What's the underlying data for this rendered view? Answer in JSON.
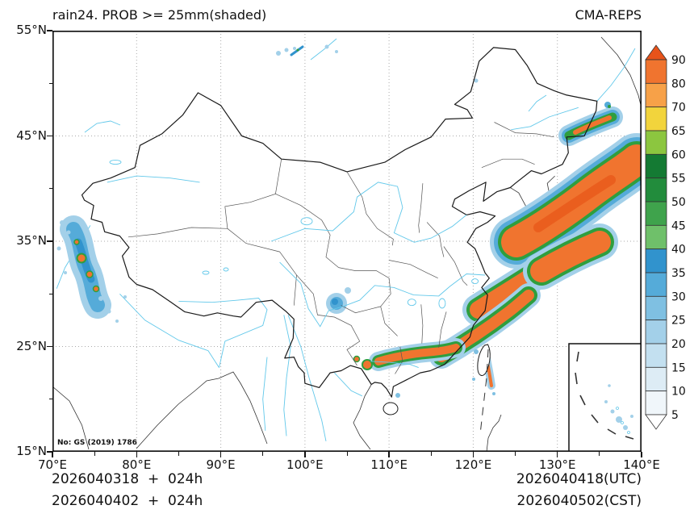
{
  "header": {
    "title": "rain24. PROB >= 25mm(shaded)",
    "source": "CMA-REPS"
  },
  "axes": {
    "lat_ticks": [
      "55°N",
      "45°N",
      "35°N",
      "25°N",
      "15°N"
    ],
    "lon_ticks": [
      "70°E",
      "80°E",
      "90°E",
      "100°E",
      "110°E",
      "120°E",
      "130°E",
      "140°E"
    ]
  },
  "colorbar": {
    "labels": [
      "90",
      "80",
      "70",
      "65",
      "60",
      "55",
      "50",
      "45",
      "40",
      "35",
      "30",
      "25",
      "20",
      "15",
      "10",
      "5"
    ],
    "segment_colors_top_to_bottom": [
      "#f0742f",
      "#f7a148",
      "#f2d43c",
      "#8cc63f",
      "#147a33",
      "#228c3c",
      "#3fa34c",
      "#6fc06a",
      "#3193cd",
      "#55abd9",
      "#7fc0e2",
      "#a3d0e9",
      "#c3e0f0",
      "#ddecf5",
      "#f0f6fa"
    ],
    "arrow_top_color": "#e8531a",
    "arrow_bottom_color": "#ffffff"
  },
  "footer": {
    "line1_left": "2026040318  +  024h",
    "line1_right": "2026040418(UTC)",
    "line2_left": "2026040402  +  024h",
    "line2_right": "2026040502(CST)"
  },
  "map": {
    "annotation": "No: GS (2019) 1786",
    "land_color": "#ffffff",
    "border_color": "#1a1a1a",
    "province_color": "#555555",
    "river_color": "#62c8ea",
    "grid_color": "#aaaaaa",
    "shade_orange": "#f0742f",
    "shade_dark_orange": "#ea5e1e",
    "shade_green": "#2f9e3e",
    "shade_blue": "#55abd9",
    "shade_light_blue": "#a3d0e9",
    "shaded_regions": [
      {
        "area": "Sea of Japan, Korea to northern Japan",
        "probability": ">=90% core band with 25-60% fringe"
      },
      {
        "area": "Korea Strait to southern Japan",
        "probability": "80-90% band"
      },
      {
        "area": "East China Sea / Ryukyu toward Taiwan",
        "probability": "~80% narrow band"
      },
      {
        "area": "South China coast (Guangxi-Guangdong)",
        "probability": "60-90% patches"
      },
      {
        "area": "Western Tibet / Karakoram border",
        "probability": "15-50% area with small >=70% spots"
      },
      {
        "area": "Sichuan basin",
        "probability": "20-40% patch"
      },
      {
        "area": "Far-northeast corner and scattered northern specks",
        "probability": "10-30% specks"
      }
    ]
  }
}
